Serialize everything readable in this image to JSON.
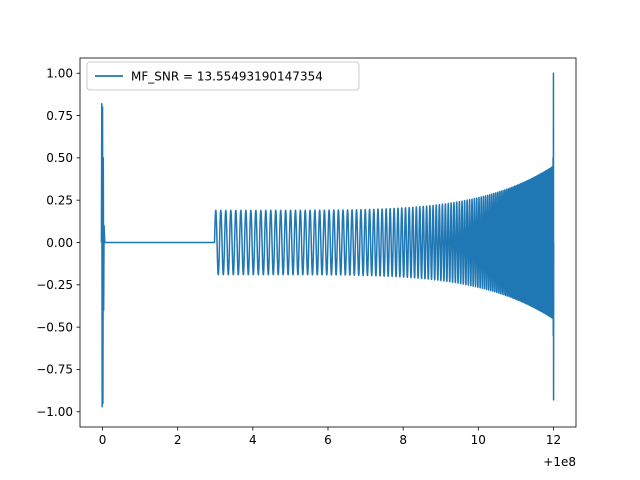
{
  "chart_data": {
    "type": "line",
    "title": "",
    "xlabel": "",
    "ylabel": "",
    "x_offset_label": "+1e8",
    "xlim": [
      -0.6,
      12.6
    ],
    "ylim": [
      -1.09,
      1.09
    ],
    "xticks": [
      0,
      2,
      4,
      6,
      8,
      10,
      12
    ],
    "xtick_labels": [
      "0",
      "2",
      "4",
      "6",
      "8",
      "10",
      "12"
    ],
    "yticks": [
      1.0,
      0.75,
      0.5,
      0.25,
      0.0,
      -0.25,
      -0.5,
      -0.75,
      -1.0
    ],
    "ytick_labels": [
      "1.00",
      "0.75",
      "0.50",
      "0.25",
      "0.00",
      "−0.25",
      "−0.50",
      "−0.75",
      "−1.00"
    ],
    "grid": false,
    "legend_position": "top-left",
    "series": [
      {
        "name": "MF_SNR = 13.55493190147354",
        "color": "#1f77b4",
        "segments": [
          {
            "description_kind": "transient",
            "x": [
              -0.03,
              -0.02,
              -0.01,
              0.0,
              0.01,
              0.02,
              0.03,
              0.04,
              0.06
            ],
            "y": [
              0.0,
              0.82,
              -0.97,
              0.8,
              -0.95,
              0.5,
              -0.4,
              0.1,
              0.0
            ]
          },
          {
            "description_kind": "flat",
            "x": [
              0.06,
              2.98
            ],
            "y": [
              0.0,
              0.0
            ]
          },
          {
            "description_kind": "chirp",
            "x_start": 2.98,
            "x_end": 11.99,
            "amp_start": 0.19,
            "amp_end": 0.45,
            "cycles_start_per_unit": 7.5,
            "cycles_end_per_unit": 40
          },
          {
            "description_kind": "merger",
            "x": [
              11.99,
              11.995,
              12.0,
              12.003,
              12.006
            ],
            "y": [
              0.5,
              -0.55,
              1.0,
              -0.93,
              0.0
            ]
          }
        ]
      }
    ]
  }
}
